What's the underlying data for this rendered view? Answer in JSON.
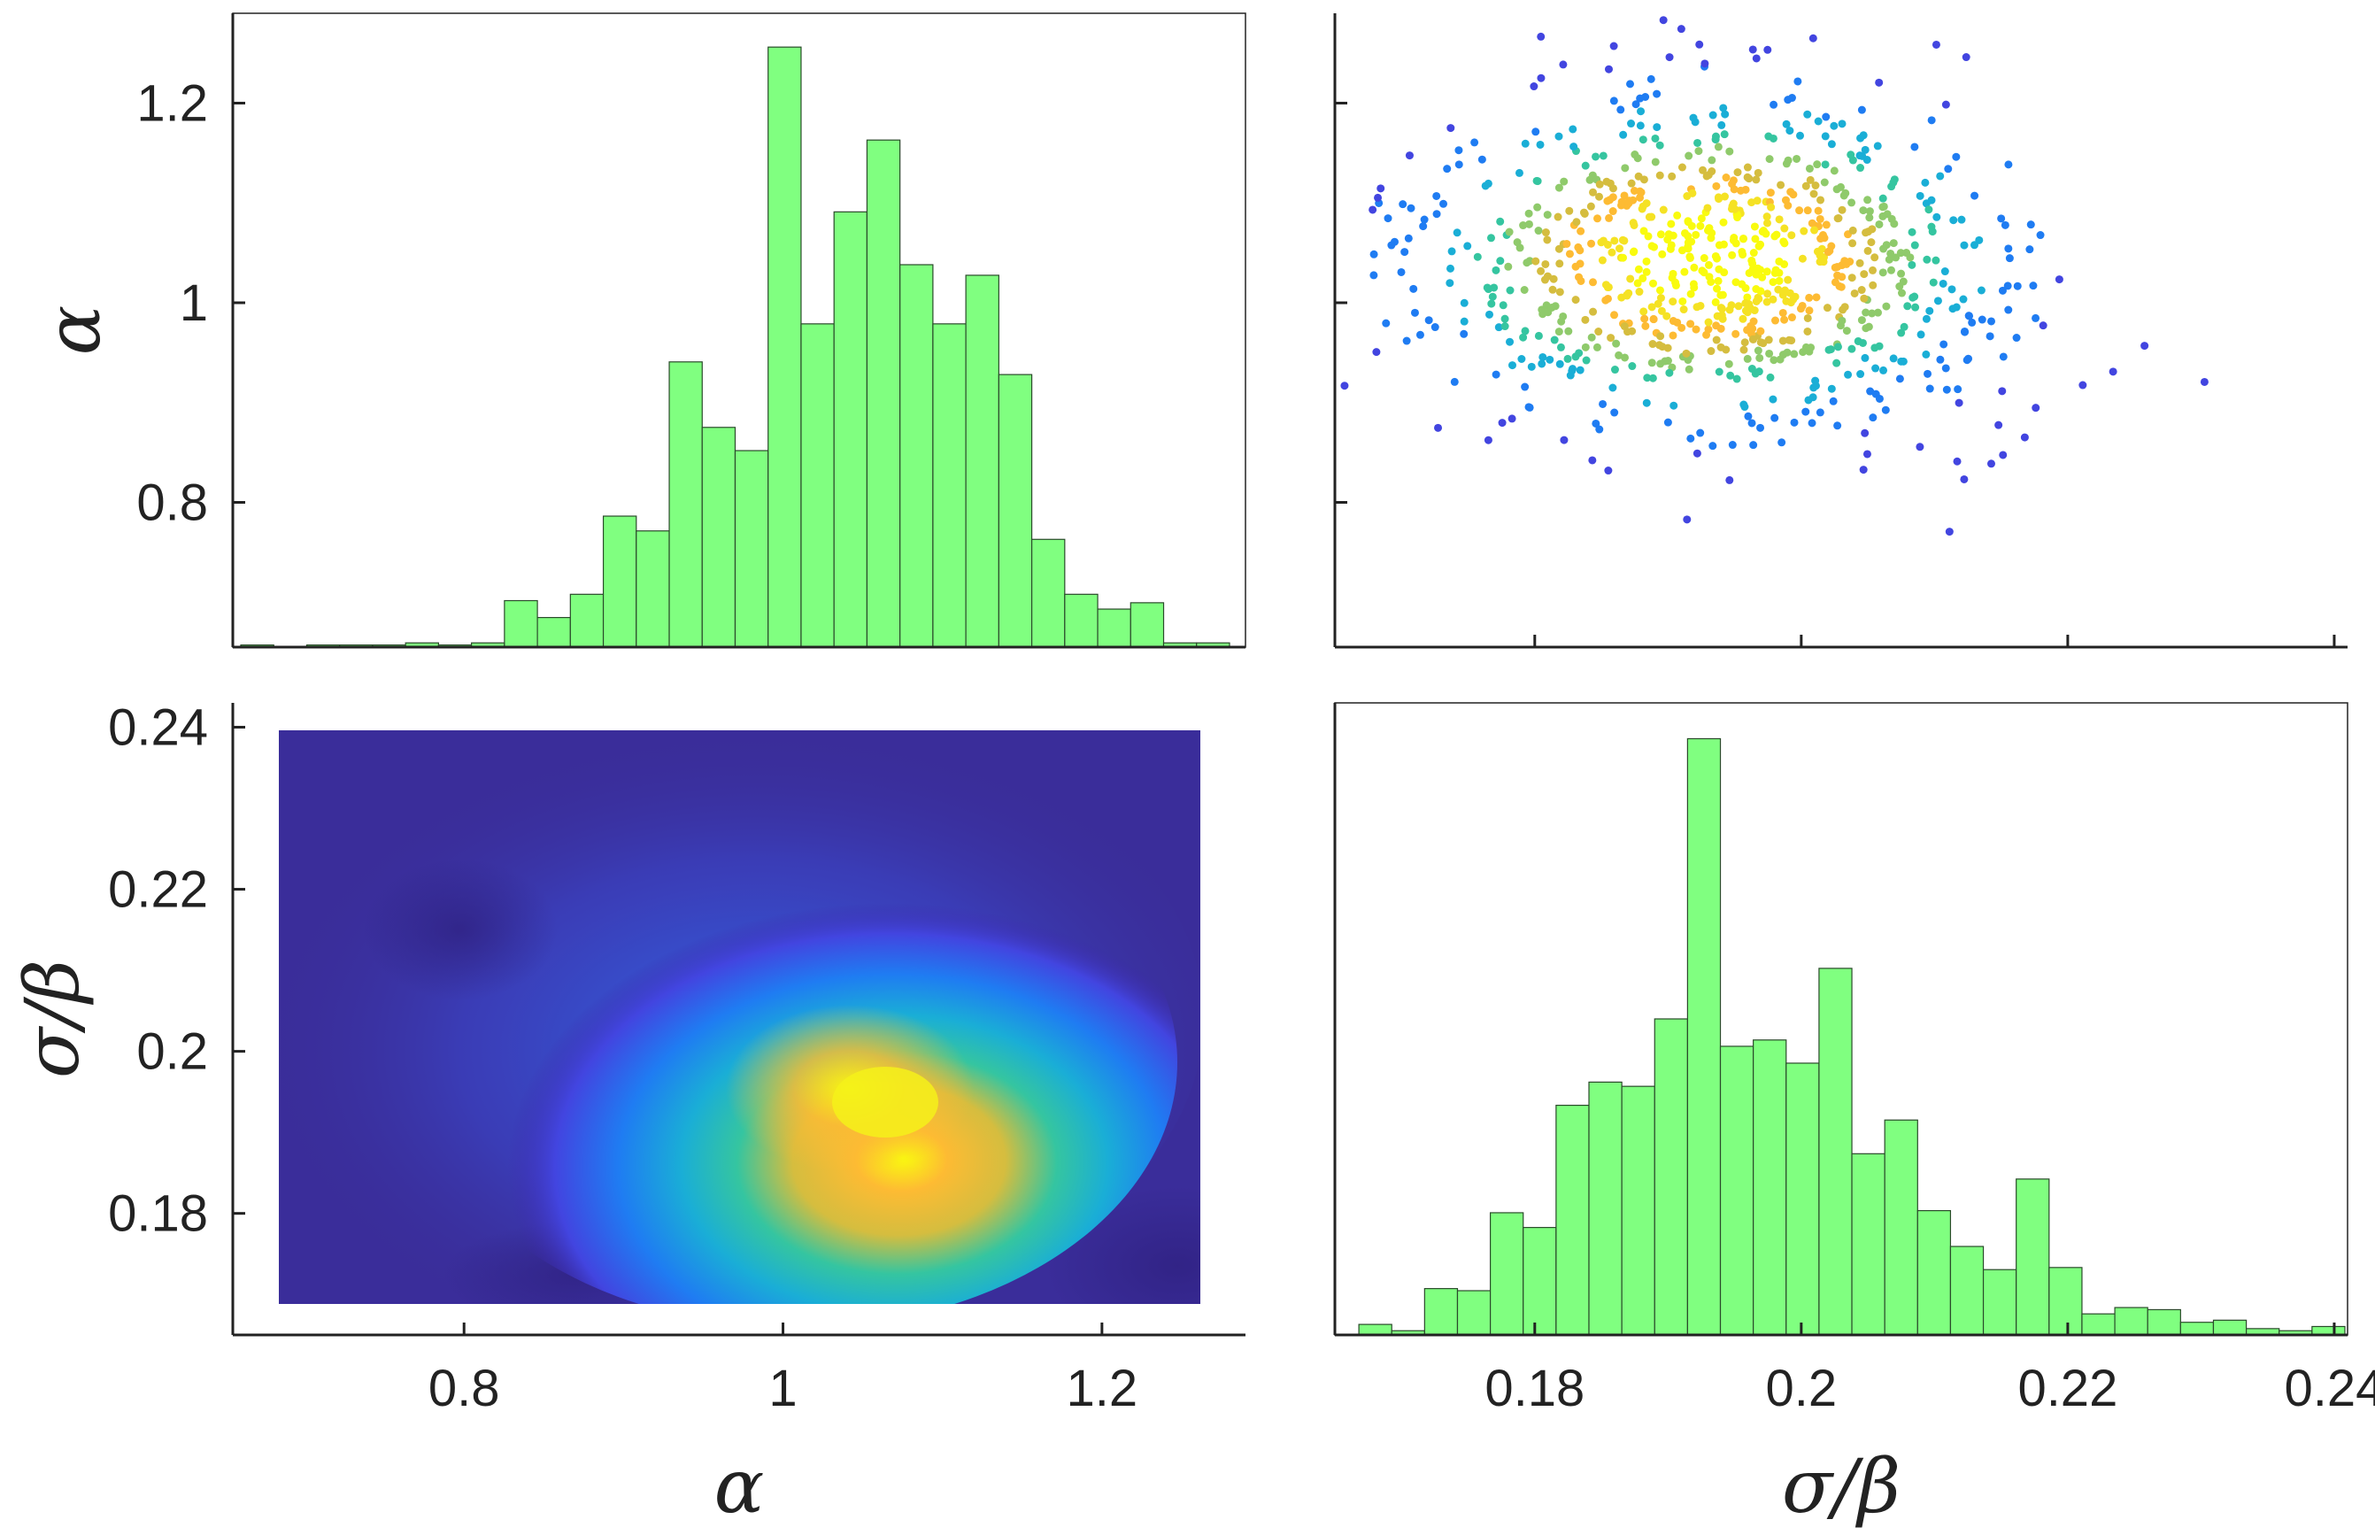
{
  "colors": {
    "bar_fill": "#80ff80",
    "bar_edge": "#2a4a2a",
    "parula": [
      "#3e26a8",
      "#4245e0",
      "#1f7cf2",
      "#1aaed6",
      "#35c5a0",
      "#8fca6b",
      "#d5bd3f",
      "#fdbb33",
      "#f5e224",
      "#f9fb0e"
    ]
  },
  "chart_data": [
    {
      "id": "hist-alpha",
      "type": "bar",
      "panel": "top-left",
      "xlabel": "",
      "ylabel": "α",
      "x_range": [
        0.655,
        1.29
      ],
      "y_range": [
        0.655,
        1.29
      ],
      "y_ticks": [
        0.8,
        1,
        1.2
      ],
      "y_tick_labels": [
        "0.8",
        "1",
        "1.2"
      ],
      "bin_edges": [
        0.66,
        1.28
      ],
      "values": [
        1,
        0,
        1,
        1,
        1,
        2,
        1,
        2,
        22,
        14,
        25,
        62,
        55,
        135,
        104,
        93,
        284,
        153,
        206,
        240,
        181,
        153,
        176,
        129,
        51,
        25,
        18,
        21,
        2,
        2
      ]
    },
    {
      "id": "scatter-alpha-sigma",
      "type": "scatter",
      "panel": "top-right",
      "x_range": [
        0.165,
        0.241
      ],
      "y_range": [
        0.655,
        1.29
      ],
      "x_ticks": [
        0.18,
        0.2,
        0.22,
        0.24
      ],
      "y_ticks": [
        0.8,
        1,
        1.2
      ],
      "color_by": "density"
    },
    {
      "id": "density-sigma-alpha",
      "type": "heatmap",
      "panel": "bottom-left",
      "xlabel": "α",
      "ylabel": "σ/β",
      "x_range": [
        0.655,
        1.29
      ],
      "y_range": [
        0.165,
        0.243
      ],
      "x_ticks": [
        0.8,
        1,
        1.2
      ],
      "x_tick_labels": [
        "0.8",
        "1",
        "1.2"
      ],
      "y_ticks": [
        0.18,
        0.2,
        0.22,
        0.24
      ],
      "y_tick_labels": [
        "0.18",
        "0.2",
        "0.22",
        "0.24"
      ],
      "extent_x": [
        0.67,
        1.27
      ],
      "extent_y": [
        0.167,
        0.239
      ]
    },
    {
      "id": "hist-sigma",
      "type": "bar",
      "panel": "bottom-right",
      "xlabel": "σ/β",
      "ylabel": "",
      "x_range": [
        0.165,
        0.241
      ],
      "x_ticks": [
        0.18,
        0.2,
        0.22,
        0.24
      ],
      "x_tick_labels": [
        "0.18",
        "0.2",
        "0.22",
        "0.24"
      ],
      "bin_edges": [
        0.1668,
        0.2408
      ],
      "values": [
        5,
        2,
        22,
        21,
        58,
        51,
        109,
        120,
        118,
        150,
        283,
        137,
        140,
        129,
        174,
        86,
        102,
        59,
        42,
        31,
        74,
        32,
        10,
        13,
        12,
        6,
        7,
        3,
        2,
        4
      ]
    }
  ]
}
